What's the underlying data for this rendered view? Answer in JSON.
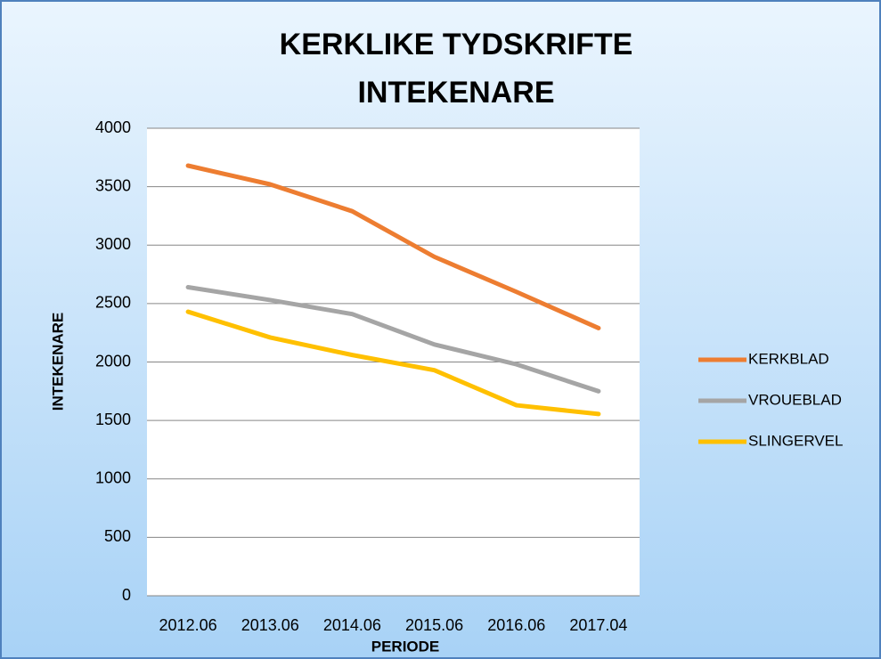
{
  "chart_data": {
    "type": "line",
    "title": [
      "KERKLIKE TYDSKRIFTE",
      "INTEKENARE"
    ],
    "x_label": "PERIODE",
    "y_label": "INTEKENARE",
    "categories": [
      "2012.06",
      "2013.06",
      "2014.06",
      "2015.06",
      "2016.06",
      "2017.04"
    ],
    "series": [
      {
        "name": "KERKBLAD",
        "color": "#ed7d31",
        "values": [
          3680,
          3520,
          3290,
          2900,
          2600,
          2290
        ]
      },
      {
        "name": "VROUEBLAD",
        "color": "#a5a5a5",
        "values": [
          2640,
          2530,
          2410,
          2150,
          1980,
          1750
        ]
      },
      {
        "name": "SLINGERVEL",
        "color": "#ffc000",
        "values": [
          2430,
          2210,
          2060,
          1930,
          1630,
          1555
        ]
      }
    ],
    "ylim": [
      0,
      4000
    ],
    "yticks": [
      0,
      500,
      1000,
      1500,
      2000,
      2500,
      3000,
      3500,
      4000
    ],
    "grid": true,
    "legend": "right"
  }
}
